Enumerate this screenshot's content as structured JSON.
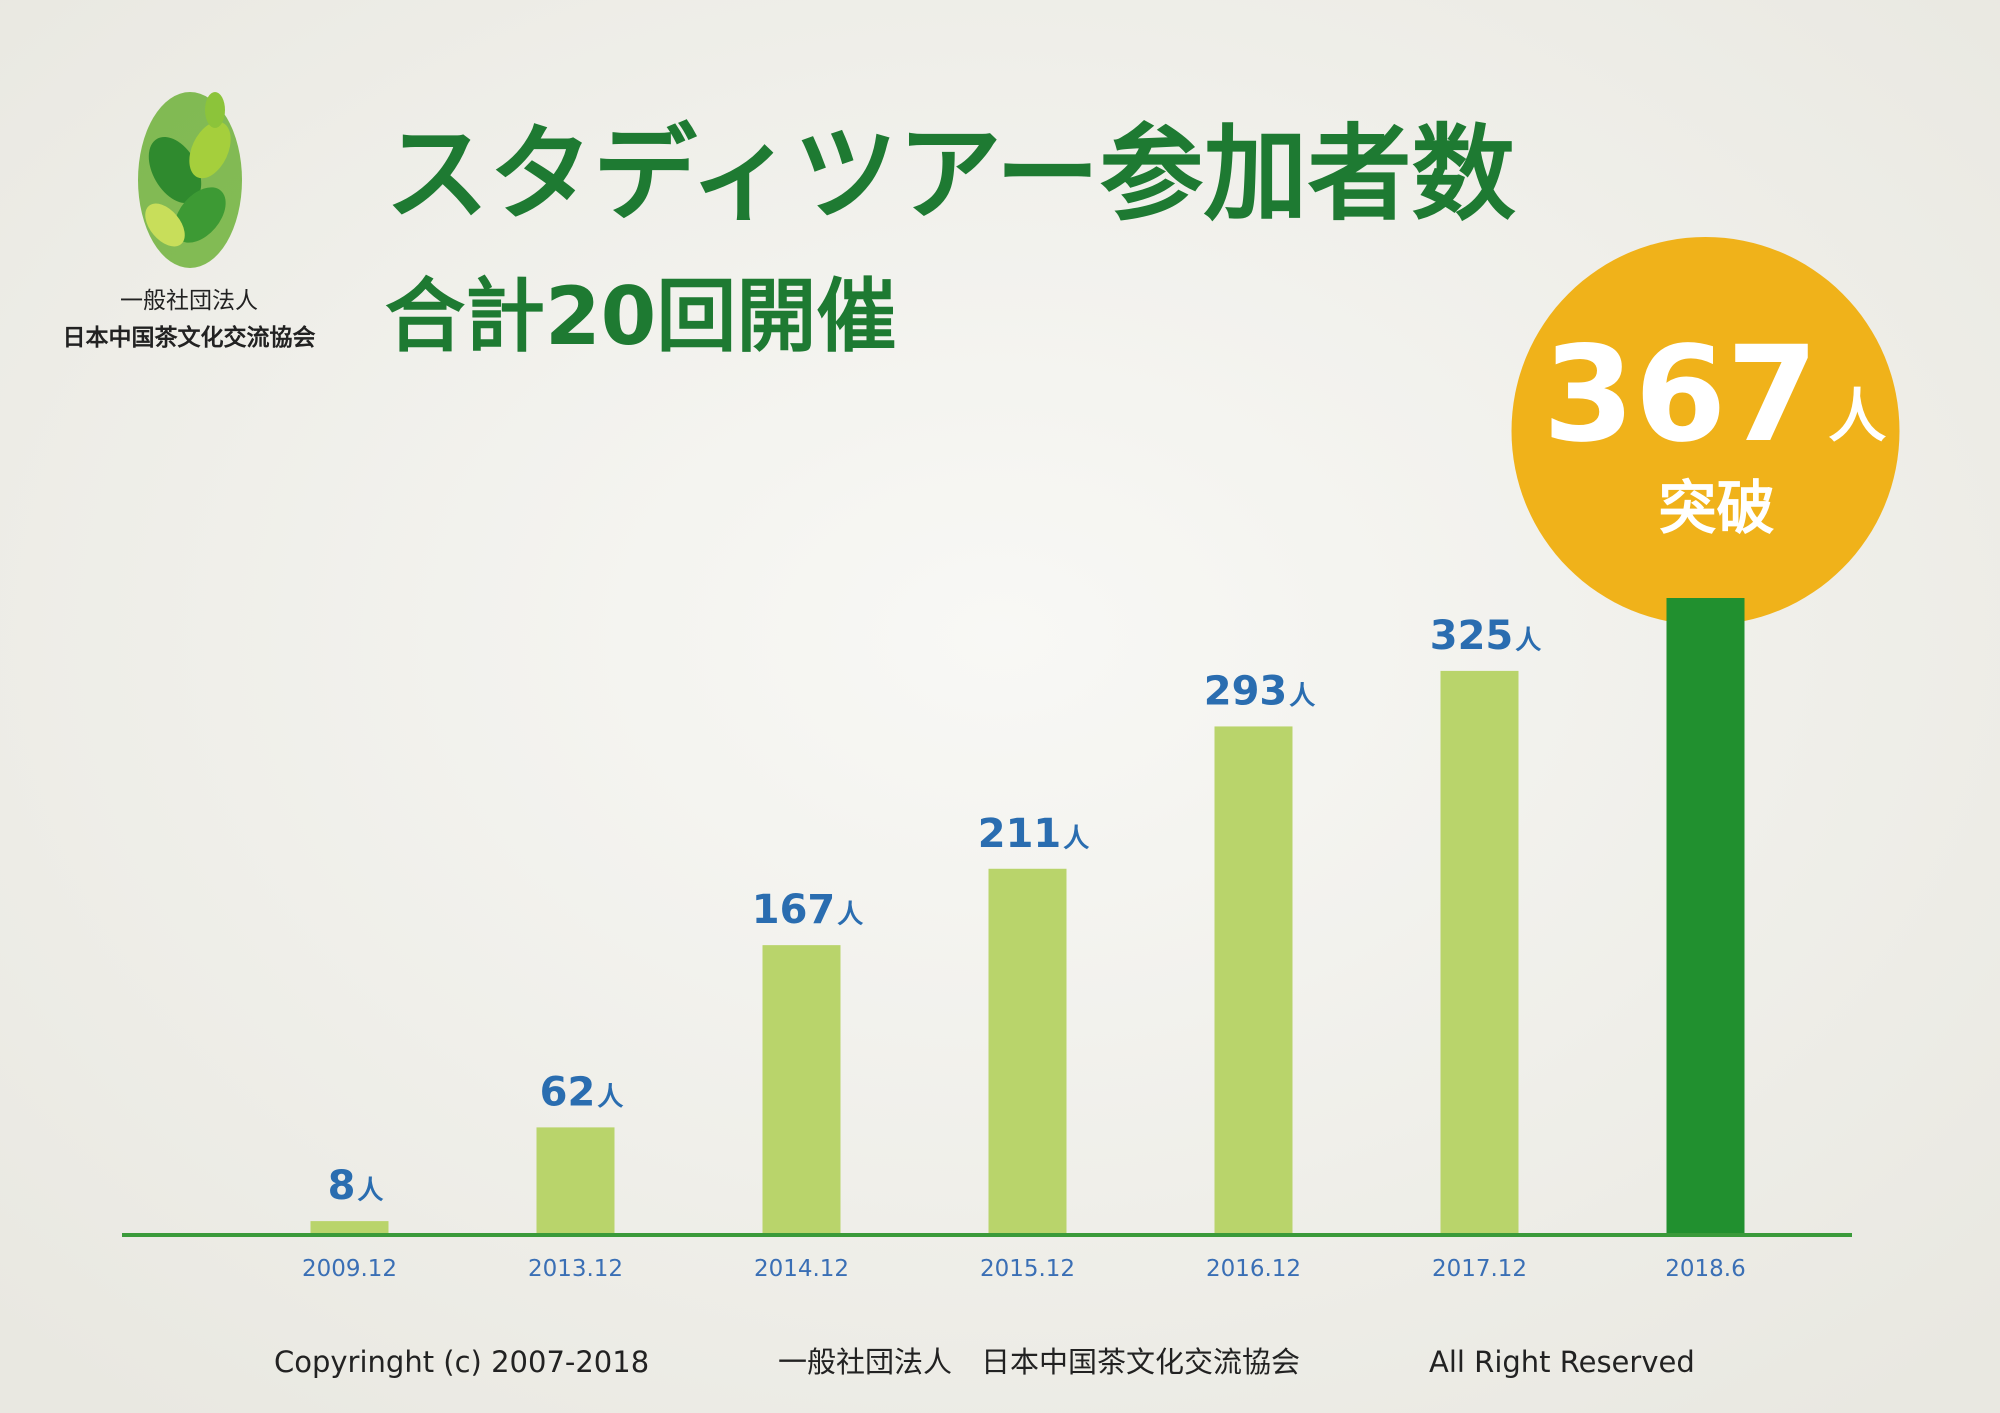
{
  "chart_data": {
    "type": "bar",
    "title": "スタディツアー参加者数",
    "subtitle": "合計20回開催",
    "organization": [
      "一般社団法人",
      "日本中国茶文化交流協会"
    ],
    "categories": [
      "2009.12",
      "2013.12",
      "2014.12",
      "2015.12",
      "2016.12",
      "2017.12",
      "2018.6"
    ],
    "values": [
      8,
      62,
      167,
      211,
      293,
      325,
      367
    ],
    "unit": "人",
    "colors": [
      "#b9d46b",
      "#b9d46b",
      "#b9d46b",
      "#b9d46b",
      "#b9d46b",
      "#b9d46b",
      "#21902f"
    ],
    "badge_text": "突破",
    "footer": [
      "Copyringht (c) 2007-2018",
      "一般社団法人　日本中国茶文化交流協会",
      "All Right Reserved"
    ]
  }
}
